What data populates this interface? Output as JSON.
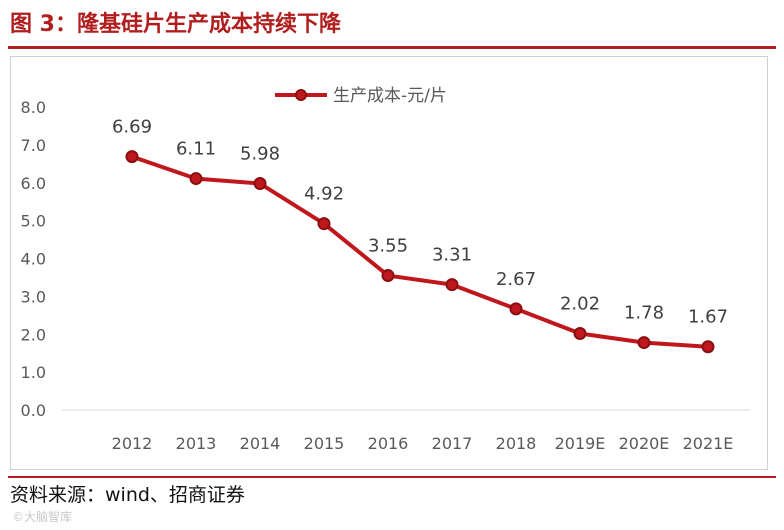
{
  "figure": {
    "title": "图 3：隆基硅片生产成本持续下降",
    "source": "资料来源：wind、招商证券",
    "watermark": "©大脑智库"
  },
  "colors": {
    "accent": "#b01e1e",
    "line": "#c0171c",
    "axis_text": "#595959",
    "grid": "#d9d9d9"
  },
  "chart_data": {
    "type": "line",
    "title": "",
    "xlabel": "",
    "ylabel": "",
    "categories": [
      "2012",
      "2013",
      "2014",
      "2015",
      "2016",
      "2017",
      "2018",
      "2019E",
      "2020E",
      "2021E"
    ],
    "series": [
      {
        "name": "生产成本-元/片",
        "values": [
          6.69,
          6.11,
          5.98,
          4.92,
          3.55,
          3.31,
          2.67,
          2.02,
          1.78,
          1.67
        ]
      }
    ],
    "data_labels": [
      "6.69",
      "6.11",
      "5.98",
      "4.92",
      "3.55",
      "3.31",
      "2.67",
      "2.02",
      "1.78",
      "1.67"
    ],
    "ylim": [
      0,
      8
    ],
    "yticks": [
      "0.0",
      "1.0",
      "2.0",
      "3.0",
      "4.0",
      "5.0",
      "6.0",
      "7.0",
      "8.0"
    ],
    "legend_position": "top-center",
    "grid": false
  }
}
